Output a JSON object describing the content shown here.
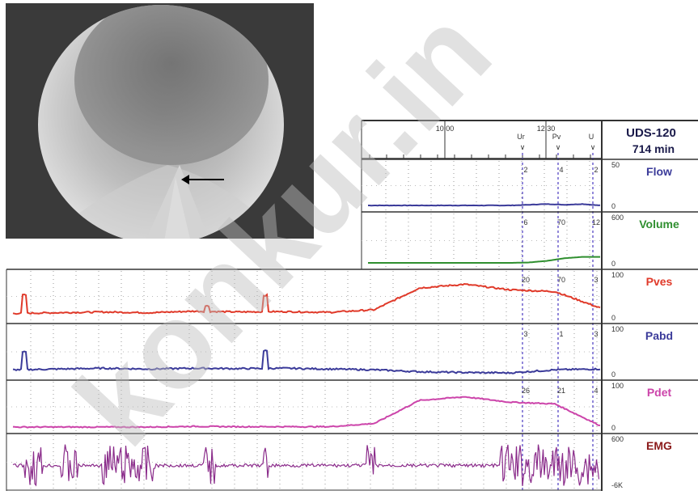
{
  "header": {
    "device": "UDS-120",
    "duration": "714 min"
  },
  "time_ticks": [
    "10:00",
    "12:30"
  ],
  "event_markers": [
    "Ur",
    "Pv",
    "U"
  ],
  "channels": [
    {
      "name": "Flow",
      "scale_top": "50",
      "scale_bottom": "0",
      "color": "#3b3b9a",
      "values": [
        "2",
        "4",
        "2"
      ]
    },
    {
      "name": "Volume",
      "scale_top": "600",
      "scale_bottom": "0",
      "color": "#2f8f2f",
      "values": [
        "6",
        "70",
        "12"
      ]
    },
    {
      "name": "Pves",
      "scale_top": "100",
      "scale_bottom": "0",
      "color": "#e03a2a",
      "values": [
        "20",
        "70",
        "3"
      ]
    },
    {
      "name": "Pabd",
      "scale_top": "100",
      "scale_bottom": "0",
      "color": "#3b3b9a",
      "values": [
        "3",
        "1",
        "3"
      ]
    },
    {
      "name": "Pdet",
      "scale_top": "100",
      "scale_bottom": "0",
      "color": "#cc44aa",
      "values": [
        "26",
        "21",
        "4"
      ]
    },
    {
      "name": "EMG",
      "scale_top": "600",
      "scale_bottom": "-6K",
      "color": "#8b1a1a",
      "values": []
    }
  ],
  "watermark": "konkur.in",
  "chart_data": {
    "type": "line",
    "title": "",
    "xlabel": "",
    "ylabel": "",
    "x_ticks": [
      "10:00",
      "12:30"
    ],
    "series": [
      {
        "name": "Flow",
        "unit_scale": [
          0,
          50
        ],
        "values": [
          0,
          0,
          0,
          0,
          0,
          0,
          0,
          0,
          0,
          1,
          2,
          1,
          2,
          0
        ]
      },
      {
        "name": "Volume",
        "unit_scale": [
          0,
          600
        ],
        "values": [
          0,
          0,
          0,
          0,
          0,
          0,
          0,
          0,
          0,
          6,
          30,
          70,
          90,
          90
        ]
      },
      {
        "name": "Pves",
        "unit_scale": [
          0,
          100
        ],
        "values": [
          10,
          12,
          14,
          12,
          16,
          14,
          15,
          13,
          20,
          80,
          90,
          75,
          70,
          25
        ]
      },
      {
        "name": "Pabd",
        "unit_scale": [
          0,
          100
        ],
        "values": [
          10,
          12,
          14,
          12,
          14,
          13,
          14,
          12,
          10,
          5,
          3,
          2,
          10,
          12
        ]
      },
      {
        "name": "Pdet",
        "unit_scale": [
          0,
          100
        ],
        "values": [
          0,
          0,
          0,
          0,
          2,
          1,
          1,
          1,
          10,
          75,
          85,
          70,
          65,
          4
        ]
      }
    ]
  }
}
